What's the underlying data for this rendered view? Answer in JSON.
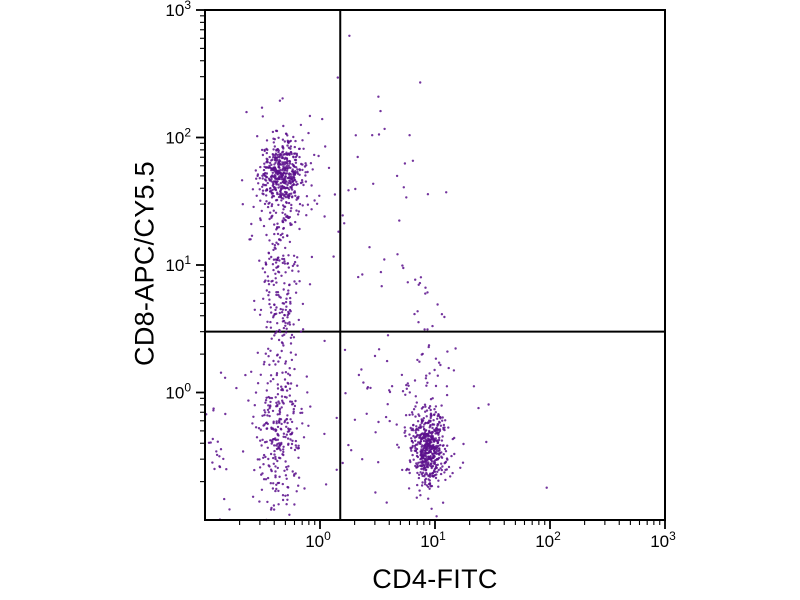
{
  "figure": {
    "background": "#ffffff",
    "axis_color": "#000000"
  },
  "chart_data": {
    "type": "scatter",
    "title": "",
    "xlabel": "CD4-FITC",
    "ylabel": "CD8-APC/CY5.5",
    "x_scale": "log",
    "y_scale": "log",
    "xlim": [
      0.1,
      1000
    ],
    "ylim": [
      0.1,
      1000
    ],
    "x_tick_labels": [
      "10⁰",
      "10¹",
      "10²",
      "10³"
    ],
    "y_tick_labels": [
      "10⁰",
      "10¹",
      "10²",
      "10³"
    ],
    "x_tick_exponents": [
      0,
      1,
      2,
      3
    ],
    "y_tick_exponents": [
      0,
      1,
      2,
      3
    ],
    "minor_ticks": true,
    "grid": false,
    "legend": "none",
    "dot_color": "#5a0f8c",
    "quadrant_gate": {
      "x": 1.5,
      "y": 3.0
    },
    "seed": 1234,
    "populations": [
      {
        "name": "CD8-positive dense cluster",
        "log_center": [
          -0.33,
          1.71
        ],
        "log_sd": [
          0.095,
          0.125
        ],
        "count": 430
      },
      {
        "name": "CD8-positive halo",
        "log_center": [
          -0.33,
          1.68
        ],
        "log_sd": [
          0.16,
          0.28
        ],
        "count": 110
      },
      {
        "name": "CD8 dim column",
        "log_center": [
          -0.34,
          0.85
        ],
        "log_sd": [
          0.09,
          0.38
        ],
        "count": 210
      },
      {
        "name": "Double-negative column",
        "log_center": [
          -0.35,
          -0.33
        ],
        "log_sd": [
          0.1,
          0.3
        ],
        "count": 290
      },
      {
        "name": "CD4-positive dense cluster",
        "log_center": [
          0.95,
          -0.43
        ],
        "log_sd": [
          0.075,
          0.15
        ],
        "count": 470
      },
      {
        "name": "CD4-positive halo",
        "log_center": [
          0.93,
          -0.35
        ],
        "log_sd": [
          0.13,
          0.28
        ],
        "count": 90
      },
      {
        "name": "CD4 upper tail",
        "log_center": [
          0.88,
          0.35
        ],
        "log_sd": [
          0.12,
          0.4
        ],
        "count": 40
      },
      {
        "name": "Mid scatter high",
        "log_center": [
          0.45,
          1.35
        ],
        "log_sd": [
          0.3,
          0.5
        ],
        "count": 42
      },
      {
        "name": "Mid scatter low",
        "log_center": [
          0.45,
          -0.15
        ],
        "log_sd": [
          0.3,
          0.4
        ],
        "count": 40
      },
      {
        "name": "Left edge column",
        "log_center": [
          -0.9,
          -0.25
        ],
        "log_sd": [
          0.07,
          0.35
        ],
        "count": 28
      },
      {
        "name": "Right stragglers",
        "log_center": [
          1.5,
          -0.5
        ],
        "log_sd": [
          0.25,
          0.3
        ],
        "count": 5
      }
    ]
  }
}
